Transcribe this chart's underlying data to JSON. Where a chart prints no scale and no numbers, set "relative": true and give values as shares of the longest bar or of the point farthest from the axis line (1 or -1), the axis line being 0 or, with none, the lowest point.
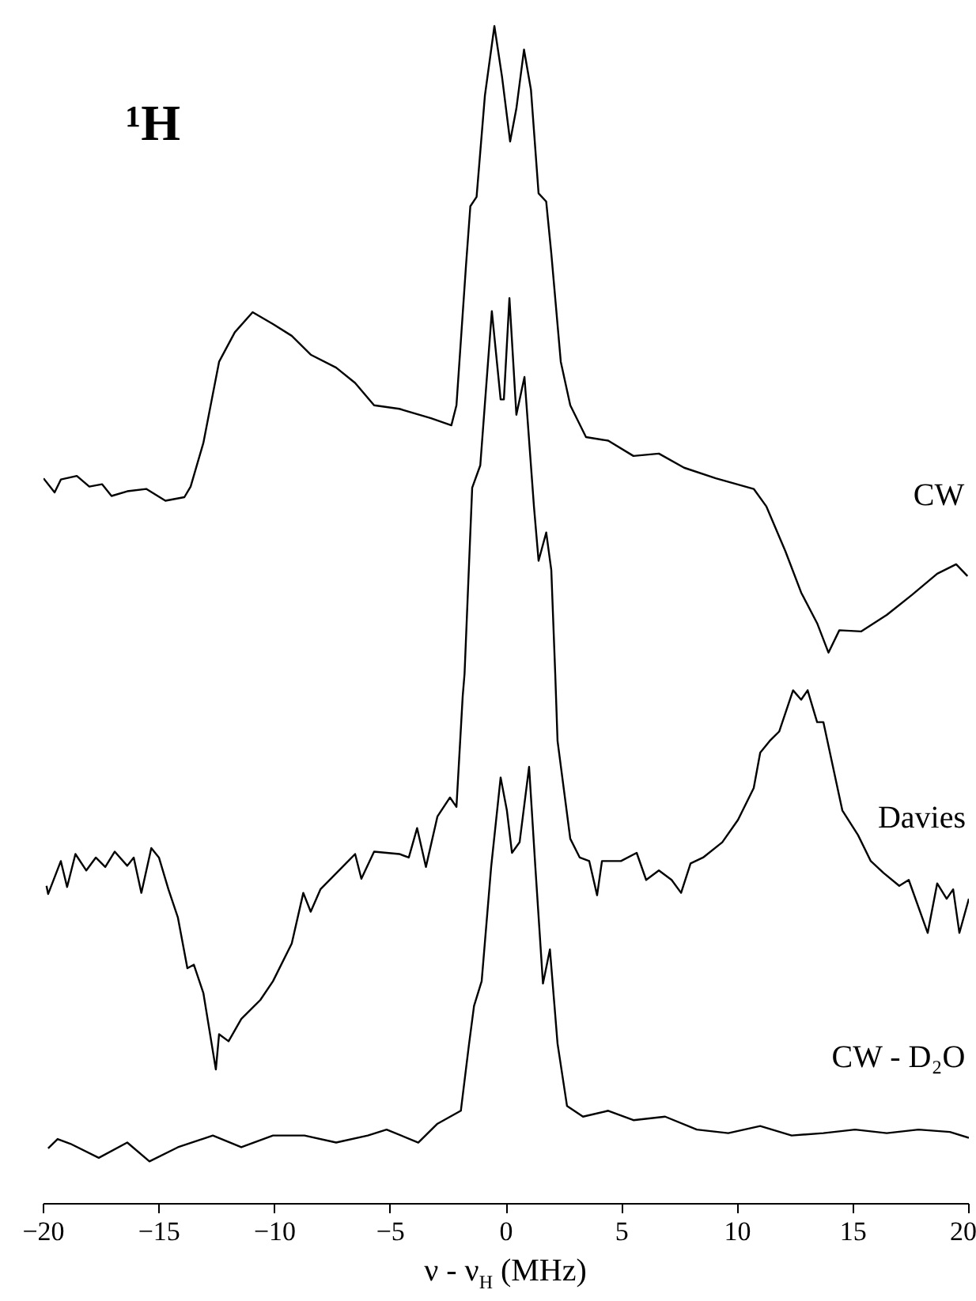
{
  "chart_data": {
    "type": "line",
    "title": "¹H",
    "xlabel": "ν - ν$_{H}$ (MHz)",
    "relative": true,
    "xlim": [
      -20,
      20
    ],
    "xticks": [
      -20,
      -15,
      -10,
      -5,
      0,
      5,
      10,
      15,
      20
    ],
    "tick_labels": "x",
    "grid": false,
    "legend": false,
    "marker": "none",
    "line_style": "solid",
    "series": [
      {
        "name": "CW",
        "color": "#000000",
        "x": [
          -20,
          -19.52,
          -19.25,
          -18.56,
          -18.02,
          -17.47,
          -17.06,
          -16.38,
          -15.56,
          -14.73,
          -13.91,
          -13.64,
          -13.09,
          -12.41,
          -11.73,
          -10.96,
          -10.08,
          -9.27,
          -8.45,
          -7.35,
          -6.53,
          -5.71,
          -4.62,
          -3.25,
          -2.37,
          -2.15,
          -1.74,
          -1.55,
          -1.28,
          -0.92,
          -0.51,
          -0.18,
          0.17,
          0.44,
          0.77,
          1.07,
          1.4,
          1.73,
          1.95,
          2.36,
          2.77,
          3.45,
          4.41,
          5.5,
          6.6,
          7.69,
          9.06,
          10.7,
          11.25,
          12.07,
          12.75,
          13.44,
          13.93,
          14.4,
          15.35,
          16.45,
          17.54,
          18.63,
          19.45,
          19.94
        ],
        "values": [
          0.616,
          0.604,
          0.615,
          0.618,
          0.609,
          0.611,
          0.601,
          0.605,
          0.607,
          0.597,
          0.6,
          0.609,
          0.646,
          0.715,
          0.74,
          0.757,
          0.747,
          0.737,
          0.721,
          0.71,
          0.697,
          0.678,
          0.675,
          0.667,
          0.661,
          0.678,
          0.796,
          0.847,
          0.855,
          0.941,
          1,
          0.957,
          0.902,
          0.93,
          0.98,
          0.946,
          0.858,
          0.851,
          0.807,
          0.715,
          0.678,
          0.651,
          0.648,
          0.635,
          0.637,
          0.625,
          0.616,
          0.607,
          0.592,
          0.554,
          0.519,
          0.493,
          0.468,
          0.487,
          0.486,
          0.5,
          0.517,
          0.535,
          0.543,
          0.533
        ]
      },
      {
        "name": "Davies",
        "color": "#000000",
        "x": [
          -19.87,
          -19.8,
          -19.25,
          -18.98,
          -18.62,
          -18.15,
          -17.74,
          -17.33,
          -16.92,
          -16.38,
          -16.1,
          -15.77,
          -15.34,
          -15.01,
          -14.6,
          -14.19,
          -13.78,
          -13.5,
          -13.09,
          -12.55,
          -12.41,
          -12.0,
          -11.45,
          -10.63,
          -10.08,
          -9.27,
          -8.77,
          -8.45,
          -8.03,
          -7.08,
          -6.53,
          -6.26,
          -5.71,
          -4.62,
          -4.21,
          -3.85,
          -3.47,
          -2.97,
          -2.43,
          -2.15,
          -1.88,
          -1.8,
          -1.47,
          -1.12,
          -0.62,
          -0.24,
          -0.1,
          0.14,
          0.44,
          0.79,
          1.2,
          1.4,
          1.73,
          1.95,
          2.12,
          2.22,
          2.77,
          3.18,
          3.59,
          3.93,
          4.14,
          4.96,
          5.64,
          6.05,
          6.6,
          7.15,
          7.56,
          7.97,
          8.51,
          9.34,
          10.02,
          10.7,
          10.98,
          11.39,
          11.8,
          12.4,
          12.75,
          13.03,
          13.44,
          13.71,
          14.53,
          15.21,
          15.76,
          16.31,
          16.99,
          17.4,
          18.22,
          18.63,
          19.04,
          19.32,
          19.59,
          20
        ],
        "values": [
          0.27,
          0.263,
          0.291,
          0.269,
          0.297,
          0.283,
          0.294,
          0.286,
          0.299,
          0.287,
          0.294,
          0.264,
          0.302,
          0.294,
          0.267,
          0.243,
          0.2,
          0.203,
          0.179,
          0.114,
          0.144,
          0.138,
          0.157,
          0.173,
          0.189,
          0.221,
          0.264,
          0.248,
          0.267,
          0.286,
          0.297,
          0.276,
          0.299,
          0.297,
          0.294,
          0.319,
          0.286,
          0.329,
          0.345,
          0.337,
          0.431,
          0.45,
          0.608,
          0.627,
          0.758,
          0.683,
          0.683,
          0.769,
          0.67,
          0.702,
          0.592,
          0.546,
          0.57,
          0.538,
          0.45,
          0.393,
          0.31,
          0.294,
          0.291,
          0.262,
          0.291,
          0.291,
          0.298,
          0.275,
          0.283,
          0.275,
          0.264,
          0.289,
          0.294,
          0.307,
          0.326,
          0.353,
          0.383,
          0.393,
          0.401,
          0.436,
          0.428,
          0.436,
          0.409,
          0.409,
          0.334,
          0.313,
          0.291,
          0.281,
          0.27,
          0.275,
          0.23,
          0.272,
          0.259,
          0.267,
          0.23,
          0.259
        ]
      },
      {
        "name": "CW - D₂O",
        "color": "#000000",
        "x": [
          -19.8,
          -19.39,
          -18.84,
          -17.61,
          -16.38,
          -15.42,
          -14.19,
          -12.68,
          -11.45,
          -10.08,
          -8.72,
          -7.35,
          -5.98,
          -5.17,
          -3.8,
          -2.97,
          -1.96,
          -1.61,
          -1.39,
          -1.06,
          -0.65,
          -0.24,
          0.03,
          0.25,
          0.58,
          0.99,
          1.26,
          1.59,
          1.89,
          2.22,
          2.63,
          3.32,
          4.41,
          5.5,
          6.87,
          8.24,
          9.6,
          10.98,
          12.34,
          13.71,
          15.08,
          16.45,
          17.82,
          19.18,
          20
        ],
        "values": [
          0.047,
          0.055,
          0.051,
          0.039,
          0.052,
          0.036,
          0.048,
          0.058,
          0.048,
          0.058,
          0.058,
          0.052,
          0.058,
          0.063,
          0.052,
          0.068,
          0.079,
          0.135,
          0.168,
          0.189,
          0.286,
          0.362,
          0.334,
          0.298,
          0.307,
          0.371,
          0.286,
          0.187,
          0.216,
          0.136,
          0.083,
          0.074,
          0.079,
          0.071,
          0.074,
          0.063,
          0.06,
          0.066,
          0.058,
          0.06,
          0.063,
          0.06,
          0.063,
          0.061,
          0.056
        ]
      }
    ]
  }
}
